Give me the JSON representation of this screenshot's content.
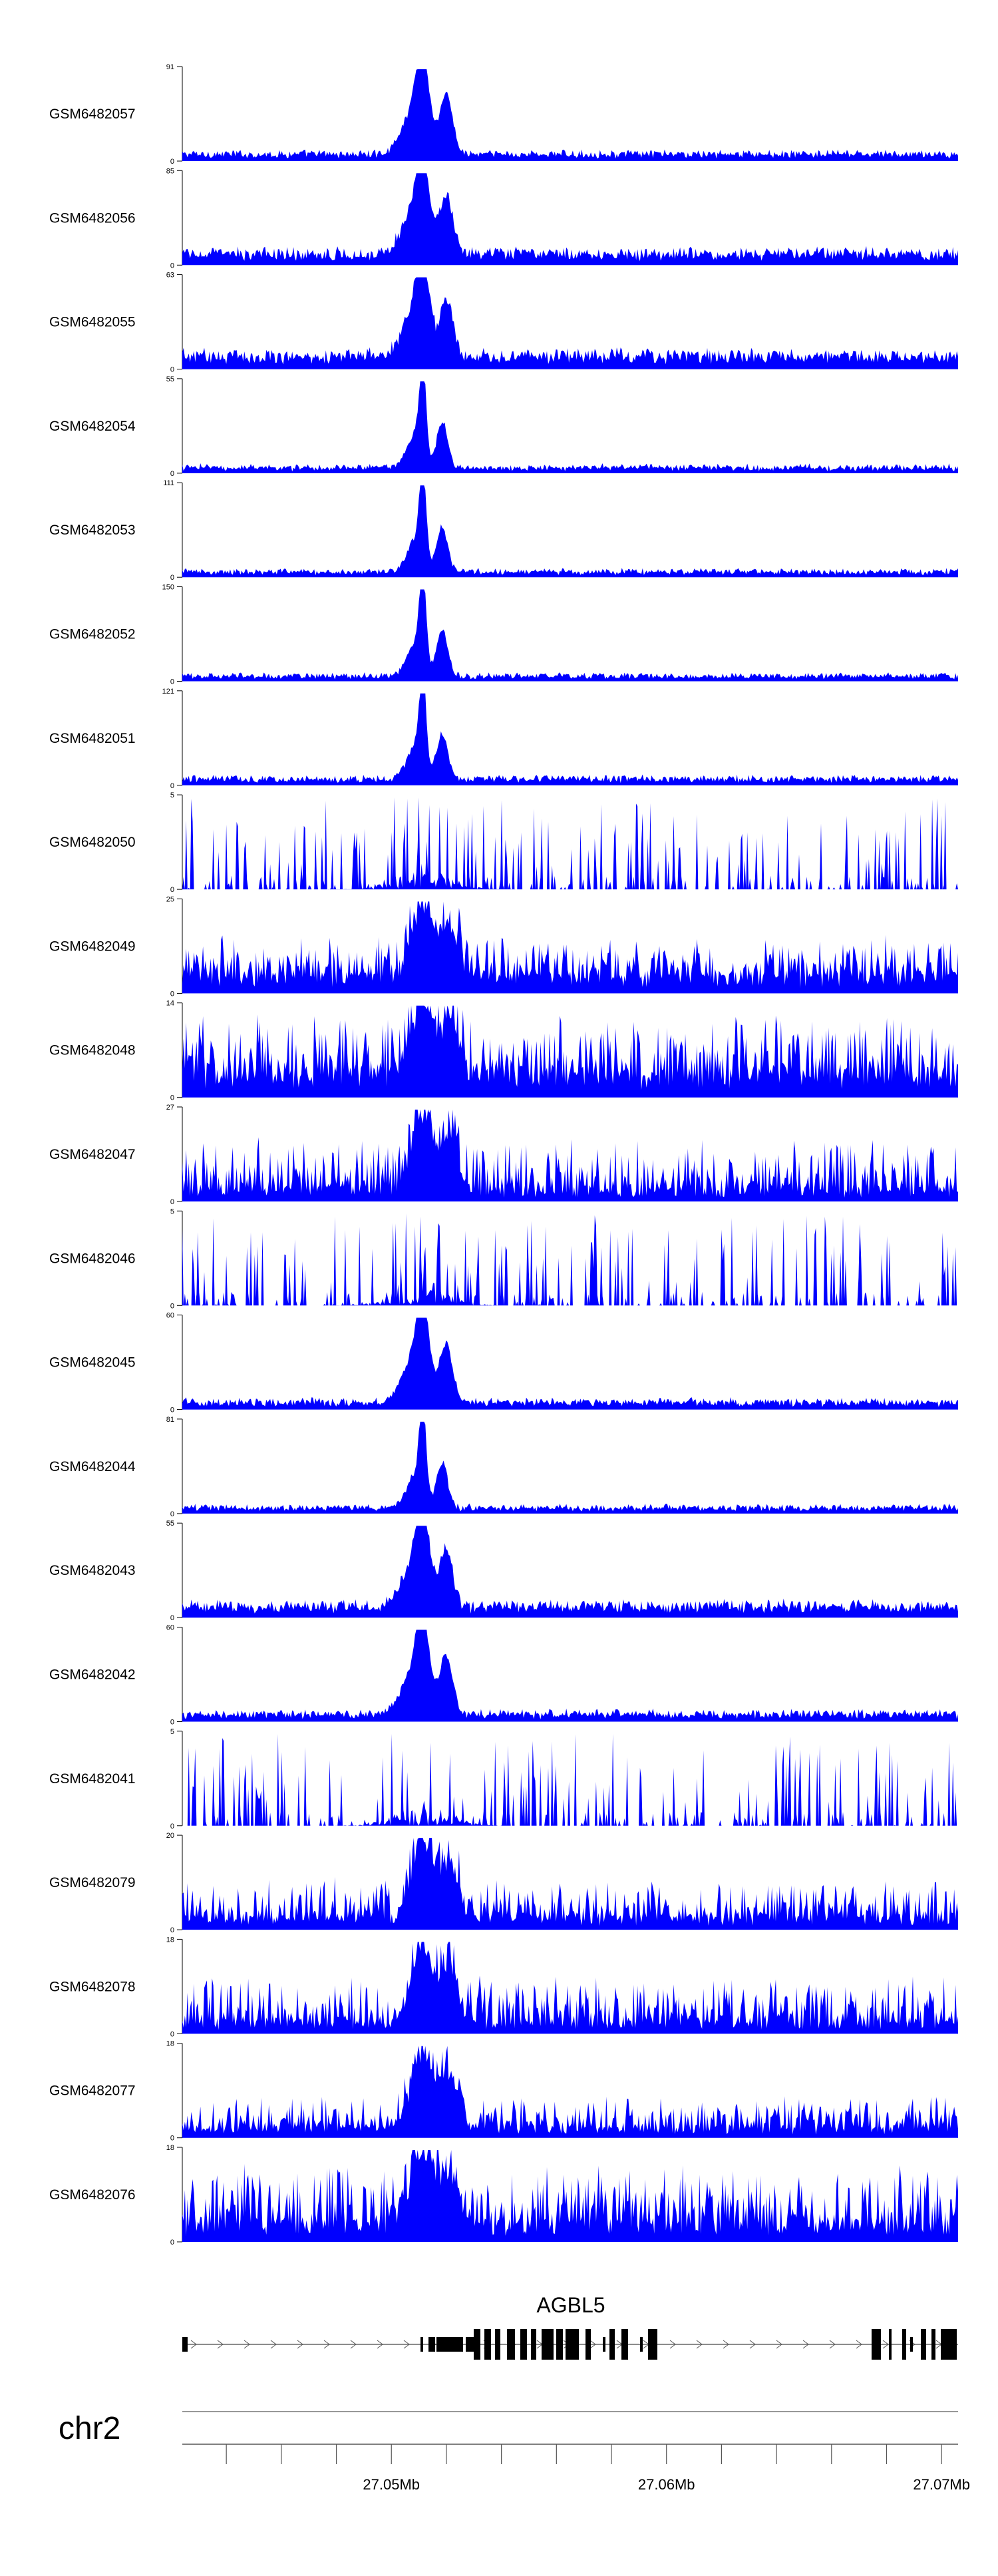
{
  "chart_data": {
    "type": "area",
    "title": "",
    "x_unit": "Mb",
    "xlim": [
      27.0424,
      27.0706
    ],
    "chromosome": "chr2",
    "x_ticks": [
      27.05,
      27.06,
      27.07
    ],
    "x_tick_labels": [
      "27.05Mb",
      "27.06Mb",
      "27.07Mb"
    ],
    "fill_color": "#0000ff",
    "tracks": [
      {
        "name": "GSM6482057",
        "ymax": 91,
        "ymax_label": "91",
        "ymin_label": "0",
        "profile": "peak",
        "baseline": 0.06,
        "noise": 0.07
      },
      {
        "name": "GSM6482056",
        "ymax": 85,
        "ymax_label": "85",
        "ymin_label": "0",
        "profile": "peak",
        "baseline": 0.1,
        "noise": 0.1
      },
      {
        "name": "GSM6482055",
        "ymax": 63,
        "ymax_label": "63",
        "ymin_label": "0",
        "profile": "peak",
        "baseline": 0.12,
        "noise": 0.1
      },
      {
        "name": "GSM6482054",
        "ymax": 55,
        "ymax_label": "55",
        "ymin_label": "0",
        "profile": "sharp",
        "baseline": 0.04,
        "noise": 0.12
      },
      {
        "name": "GSM6482053",
        "ymax": 111,
        "ymax_label": "111",
        "ymin_label": "0",
        "profile": "sharp",
        "baseline": 0.05,
        "noise": 0.06
      },
      {
        "name": "GSM6482052",
        "ymax": 150,
        "ymax_label": "150",
        "ymin_label": "0",
        "profile": "sharp",
        "baseline": 0.05,
        "noise": 0.05
      },
      {
        "name": "GSM6482051",
        "ymax": 121,
        "ymax_label": "121",
        "ymin_label": "0",
        "profile": "sharp",
        "baseline": 0.06,
        "noise": 0.06
      },
      {
        "name": "GSM6482050",
        "ymax": 5,
        "ymax_label": "5",
        "ymin_label": "0",
        "profile": "spiky",
        "baseline": 0.0,
        "noise": 0.9
      },
      {
        "name": "GSM6482049",
        "ymax": 25,
        "ymax_label": "25",
        "ymin_label": "0",
        "profile": "broad",
        "baseline": 0.15,
        "noise": 0.3
      },
      {
        "name": "GSM6482048",
        "ymax": 14,
        "ymax_label": "14",
        "ymin_label": "0",
        "profile": "broad",
        "baseline": 0.2,
        "noise": 0.45
      },
      {
        "name": "GSM6482047",
        "ymax": 27,
        "ymax_label": "27",
        "ymin_label": "0",
        "profile": "broad",
        "baseline": 0.1,
        "noise": 0.4
      },
      {
        "name": "GSM6482046",
        "ymax": 5,
        "ymax_label": "5",
        "ymin_label": "0",
        "profile": "spiky",
        "baseline": 0.05,
        "noise": 0.8
      },
      {
        "name": "GSM6482045",
        "ymax": 60,
        "ymax_label": "60",
        "ymin_label": "0",
        "profile": "peak",
        "baseline": 0.06,
        "noise": 0.08
      },
      {
        "name": "GSM6482044",
        "ymax": 81,
        "ymax_label": "81",
        "ymin_label": "0",
        "profile": "sharp",
        "baseline": 0.05,
        "noise": 0.08
      },
      {
        "name": "GSM6482043",
        "ymax": 55,
        "ymax_label": "55",
        "ymin_label": "0",
        "profile": "peak",
        "baseline": 0.1,
        "noise": 0.1
      },
      {
        "name": "GSM6482042",
        "ymax": 60,
        "ymax_label": "60",
        "ymin_label": "0",
        "profile": "peak",
        "baseline": 0.06,
        "noise": 0.1
      },
      {
        "name": "GSM6482041",
        "ymax": 5,
        "ymax_label": "5",
        "ymin_label": "0",
        "profile": "spiky",
        "baseline": 0.0,
        "noise": 0.85
      },
      {
        "name": "GSM6482079",
        "ymax": 20,
        "ymax_label": "20",
        "ymin_label": "0",
        "profile": "broad",
        "baseline": 0.1,
        "noise": 0.3
      },
      {
        "name": "GSM6482078",
        "ymax": 18,
        "ymax_label": "18",
        "ymin_label": "0",
        "profile": "broad",
        "baseline": 0.1,
        "noise": 0.35
      },
      {
        "name": "GSM6482077",
        "ymax": 18,
        "ymax_label": "18",
        "ymin_label": "0",
        "profile": "broad",
        "baseline": 0.08,
        "noise": 0.25
      },
      {
        "name": "GSM6482076",
        "ymax": 18,
        "ymax_label": "18",
        "ymin_label": "0",
        "profile": "broad",
        "baseline": 0.15,
        "noise": 0.45
      }
    ],
    "gene": {
      "name": "AGBL5",
      "strand": "+",
      "start": 27.0424,
      "end": 27.0706
    }
  }
}
